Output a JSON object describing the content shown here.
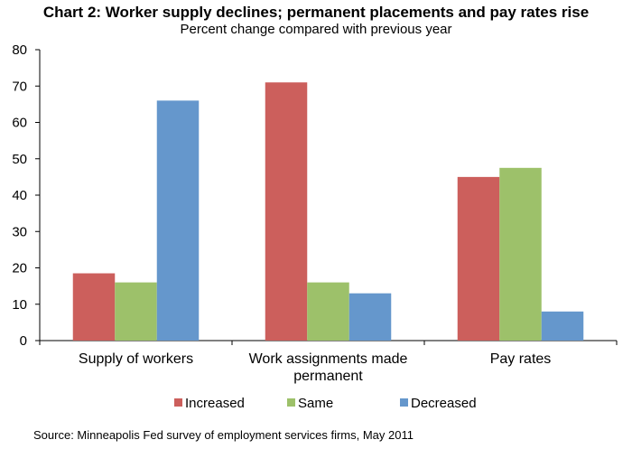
{
  "chart_data": {
    "type": "bar",
    "title": "Chart 2: Worker supply declines; permanent placements and pay rates rise",
    "subtitle": "Percent change compared with previous year",
    "categories": [
      [
        "Supply of workers"
      ],
      [
        "Work assignments made",
        "permanent"
      ],
      [
        "Pay rates"
      ]
    ],
    "series": [
      {
        "name": "Increased",
        "color": "#cc5f5c",
        "values": [
          18.5,
          71,
          45
        ]
      },
      {
        "name": "Same",
        "color": "#9dc16a",
        "values": [
          16,
          16,
          47.5
        ]
      },
      {
        "name": "Decreased",
        "color": "#6597cc",
        "values": [
          66,
          13,
          8
        ]
      }
    ],
    "ylim": [
      0,
      80
    ],
    "yticks": [
      "0",
      "10",
      "20",
      "30",
      "40",
      "50",
      "60",
      "70",
      "80"
    ],
    "legend_position": "bottom",
    "grid": false,
    "source": "Source: Minneapolis Fed survey of employment services firms, May 2011"
  }
}
